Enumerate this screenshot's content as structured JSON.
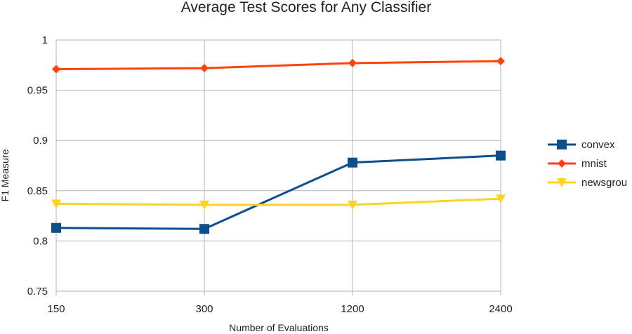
{
  "chart_data": {
    "type": "line",
    "title": "Average Test Scores for Any Classifier",
    "xlabel": "Number of Evaluations",
    "ylabel": "F1 Measure",
    "categories": [
      "150",
      "300",
      "1200",
      "2400"
    ],
    "ylim": [
      0.75,
      1
    ],
    "yticks": [
      "0.75",
      "0.8",
      "0.85",
      "0.9",
      "0.95",
      "1"
    ],
    "grid": true,
    "legend_position": "right",
    "series": [
      {
        "name": "convex",
        "color": "#0c4f8c",
        "marker": "square",
        "values": [
          0.813,
          0.812,
          0.878,
          0.885
        ]
      },
      {
        "name": "mnist",
        "color": "#ff420e",
        "marker": "diamond",
        "values": [
          0.971,
          0.972,
          0.977,
          0.979
        ]
      },
      {
        "name": "newsgrou",
        "color": "#ffd320",
        "marker": "triangle-down",
        "values": [
          0.837,
          0.836,
          0.836,
          0.842
        ]
      }
    ]
  }
}
